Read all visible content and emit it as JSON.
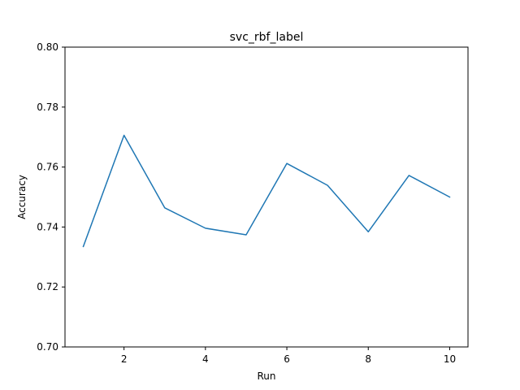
{
  "chart_data": {
    "type": "line",
    "title": "svc_rbf_label",
    "xlabel": "Run",
    "ylabel": "Accuracy",
    "xlim": [
      0.55,
      10.45
    ],
    "ylim": [
      0.7,
      0.8
    ],
    "xticks": [
      2,
      4,
      6,
      8,
      10
    ],
    "xtick_labels": [
      "2",
      "4",
      "6",
      "8",
      "10"
    ],
    "yticks": [
      0.7,
      0.72,
      0.74,
      0.76,
      0.78,
      0.8
    ],
    "ytick_labels": [
      "0.70",
      "0.72",
      "0.74",
      "0.76",
      "0.78",
      "0.80"
    ],
    "grid": false,
    "series": [
      {
        "color": "#1f77b4",
        "x": [
          1,
          2,
          3,
          4,
          5,
          6,
          7,
          8,
          9,
          10
        ],
        "values": [
          0.7335,
          0.7706,
          0.7464,
          0.7396,
          0.7374,
          0.7612,
          0.7539,
          0.7384,
          0.7572,
          0.75
        ]
      }
    ]
  }
}
